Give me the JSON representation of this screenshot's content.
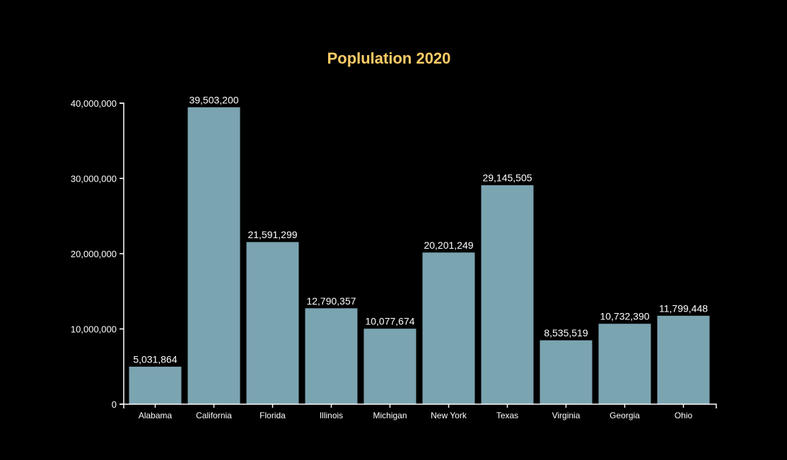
{
  "colors": {
    "background": "#000000",
    "bar": "#7ba4b1",
    "bar_stroke": "#000000",
    "title": "#ffcc66",
    "text": "#ffffff",
    "axis": "#ffffff"
  },
  "chart_data": {
    "type": "bar",
    "title": "Poplulation 2020",
    "xlabel": "",
    "ylabel": "",
    "categories": [
      "Alabama",
      "California",
      "Florida",
      "Illinois",
      "Michigan",
      "New York",
      "Texas",
      "Virginia",
      "Georgia",
      "Ohio"
    ],
    "values": [
      5031864,
      39503200,
      21591299,
      12790357,
      10077674,
      20201249,
      29145505,
      8535519,
      10732390,
      11799448
    ],
    "value_labels": [
      "5,031,864",
      "39,503,200",
      "21,591,299",
      "12,790,357",
      "10,077,674",
      "20,201,249",
      "29,145,505",
      "8,535,519",
      "10,732,390",
      "11,799,448"
    ],
    "ylim": [
      0,
      40000000
    ],
    "yticks": [
      0,
      10000000,
      20000000,
      30000000,
      40000000
    ],
    "ytick_labels": [
      "0",
      "10,000,000",
      "20,000,000",
      "30,000,000",
      "40,000,000"
    ],
    "grid": false,
    "legend": "none"
  }
}
